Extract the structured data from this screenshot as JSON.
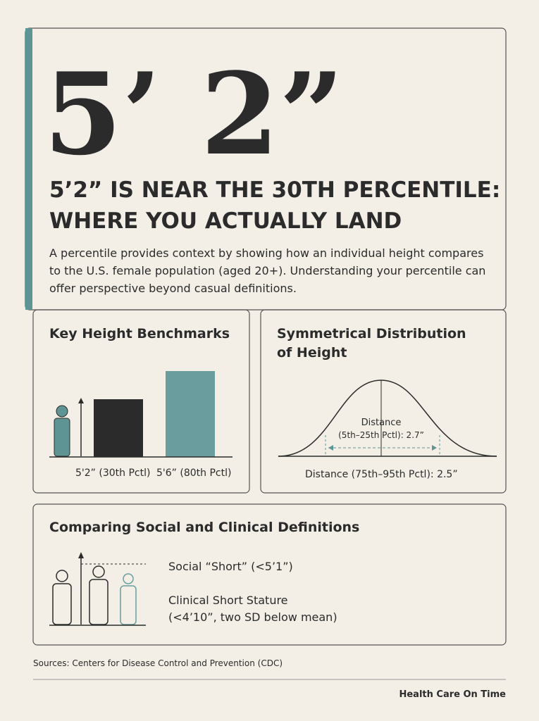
{
  "hero": "5’ 2”",
  "headline": [
    "5’2” IS NEAR THE 30TH PERCENTILE:",
    "WHERE YOU ACTUALLY LAND"
  ],
  "intro": [
    "A percentile provides context by showing how an individual height compares",
    "to the U.S. female population (aged 20+). Understanding your percentile can",
    "offer perspective beyond casual definitions."
  ],
  "benchmarks": {
    "title": "Key Height Benchmarks",
    "labels": [
      "5'2” (30th Pctl)",
      "5'6” (80th Pctl)"
    ]
  },
  "distribution": {
    "title": [
      "Symmetrical Distribution",
      "of Height"
    ],
    "inner_label": [
      "Distance",
      "(5th–25th Pctl): 2.7”"
    ],
    "outer_label": "Distance (75th–95th Pctl): 2.5”"
  },
  "definitions": {
    "title": "Comparing Social and Clinical Definitions",
    "social": "Social “Short” (<5’1”)",
    "clinical": [
      "Clinical Short Stature",
      "(<4’10”, two SD below mean)"
    ]
  },
  "sources": "Sources: Centers for Disease Control and Prevention (CDC)",
  "brand": "Health Care On Time"
}
